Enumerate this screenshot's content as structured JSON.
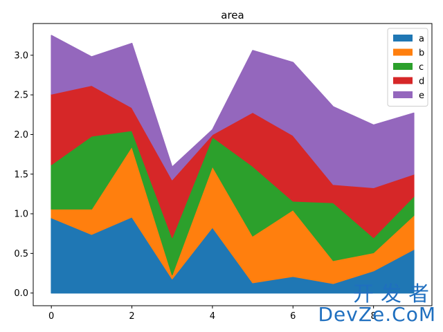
{
  "chart_data": {
    "type": "area",
    "stacked": true,
    "title": "area",
    "xlabel": "",
    "ylabel": "",
    "x": [
      0,
      1,
      2,
      3,
      4,
      5,
      6,
      7,
      8,
      9
    ],
    "xticks": [
      0,
      2,
      4,
      6,
      8
    ],
    "yticks": [
      0.0,
      0.5,
      1.0,
      1.5,
      2.0,
      2.5,
      3.0
    ],
    "ytick_labels": [
      "0.0",
      "0.5",
      "1.0",
      "1.5",
      "2.0",
      "2.5",
      "3.0"
    ],
    "xlim": [
      -0.45,
      9.45
    ],
    "ylim": [
      -0.16,
      3.4
    ],
    "legend_position": "top-right",
    "series": [
      {
        "name": "a",
        "color": "#1f77b4",
        "values": [
          0.95,
          0.74,
          0.96,
          0.18,
          0.83,
          0.13,
          0.21,
          0.12,
          0.28,
          0.55
        ]
      },
      {
        "name": "b",
        "color": "#ff7f0e",
        "values": [
          0.11,
          0.32,
          0.89,
          0.05,
          0.77,
          0.59,
          0.84,
          0.29,
          0.23,
          0.43
        ]
      },
      {
        "name": "c",
        "color": "#2ca02c",
        "values": [
          0.56,
          0.92,
          0.2,
          0.47,
          0.37,
          0.88,
          0.11,
          0.73,
          0.19,
          0.24
        ]
      },
      {
        "name": "d",
        "color": "#d62728",
        "values": [
          0.89,
          0.64,
          0.29,
          0.73,
          0.03,
          0.68,
          0.83,
          0.23,
          0.63,
          0.28
        ]
      },
      {
        "name": "e",
        "color": "#9467bd",
        "values": [
          0.74,
          0.36,
          0.81,
          0.16,
          0.06,
          0.78,
          0.92,
          0.98,
          0.79,
          0.77
        ]
      }
    ]
  },
  "watermark": {
    "line1": "开发者",
    "line2": "DevZe.CoM"
  }
}
